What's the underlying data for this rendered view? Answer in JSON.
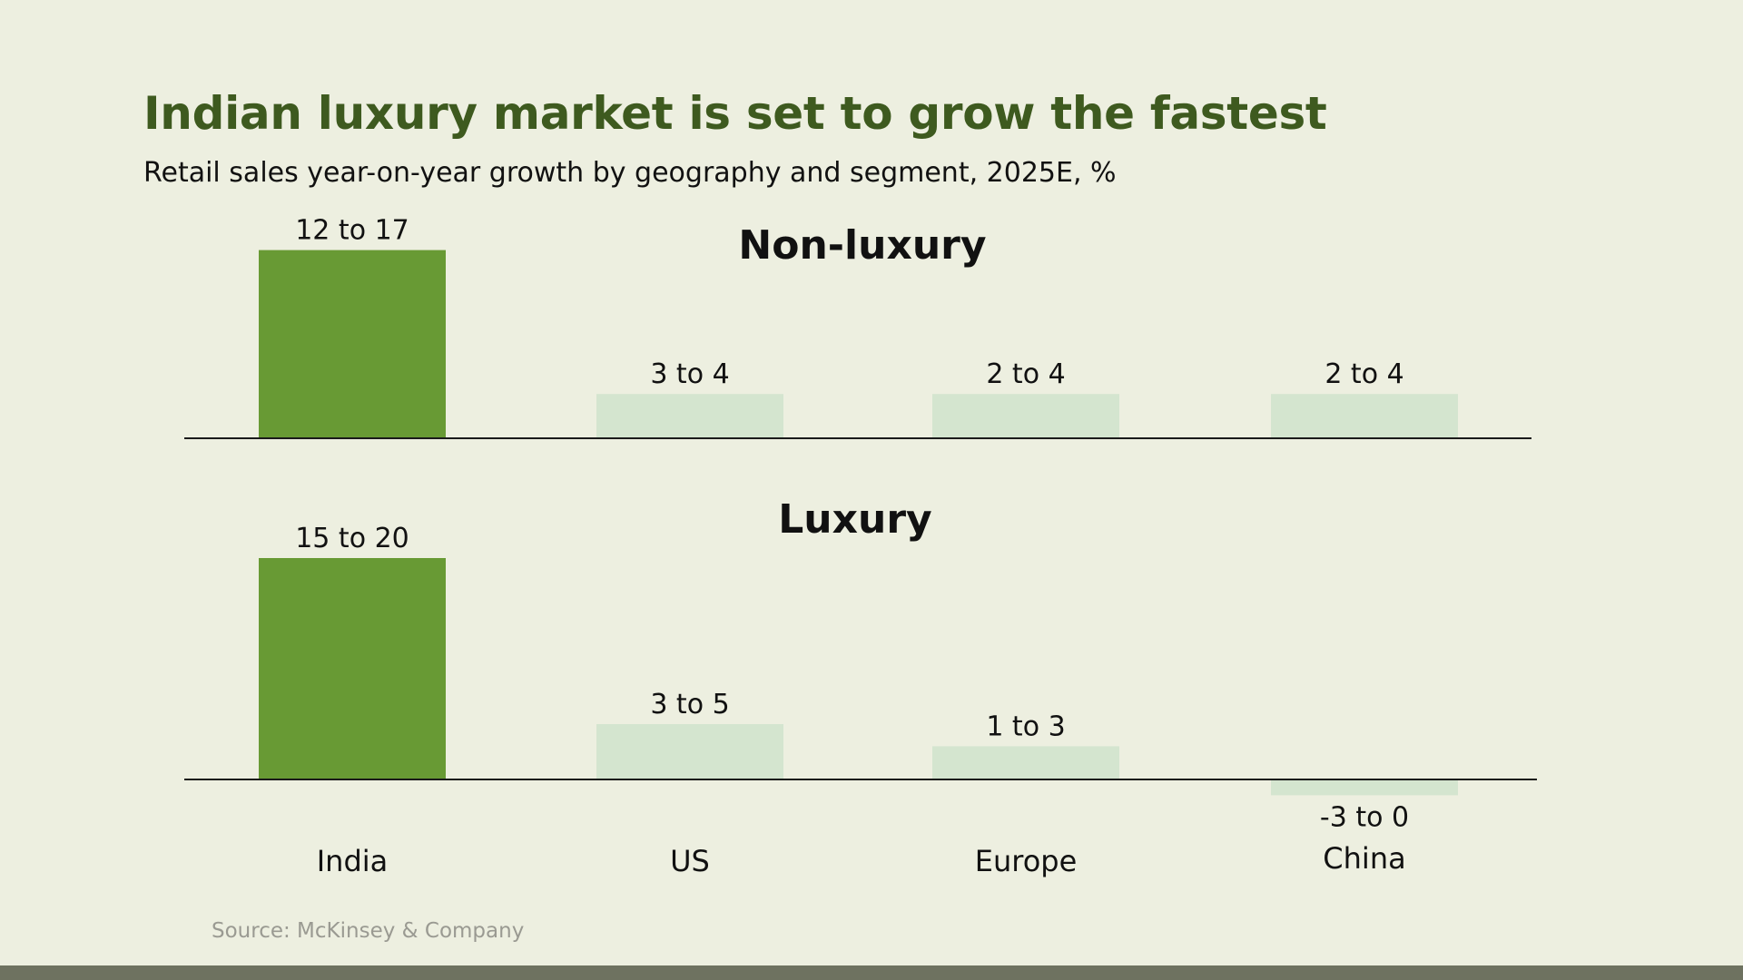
{
  "header": {
    "title": "Indian luxury market is set to grow the fastest",
    "subtitle": "Retail sales year-on-year growth by geography and segment, 2025E, %"
  },
  "footer": {
    "source": "Source: McKinsey & Company"
  },
  "colors": {
    "background": "#edefe0",
    "title": "#3e5a1f",
    "highlight_bar": "#689a34",
    "muted_bar": "#d4e5cf",
    "axis": "#1a1a1a",
    "text": "#111111",
    "source": "#9a9a92",
    "footer_bar": "#6e7260"
  },
  "chart_data": [
    {
      "type": "bar",
      "title": "Non-luxury",
      "categories": [
        "India",
        "US",
        "Europe",
        "China"
      ],
      "ranges": [
        [
          12,
          17
        ],
        [
          3,
          4
        ],
        [
          2,
          4
        ],
        [
          2,
          4
        ]
      ],
      "labels": [
        "12 to 17",
        "3 to 4",
        "2 to 4",
        "2 to 4"
      ],
      "highlight": [
        "India"
      ]
    },
    {
      "type": "bar",
      "title": "Luxury",
      "categories": [
        "India",
        "US",
        "Europe",
        "China"
      ],
      "ranges": [
        [
          15,
          20
        ],
        [
          3,
          5
        ],
        [
          1,
          3
        ],
        [
          -3,
          0
        ]
      ],
      "labels": [
        "15 to 20",
        "3 to 5",
        "1 to 3",
        "-3 to 0"
      ],
      "highlight": [
        "India"
      ]
    }
  ]
}
